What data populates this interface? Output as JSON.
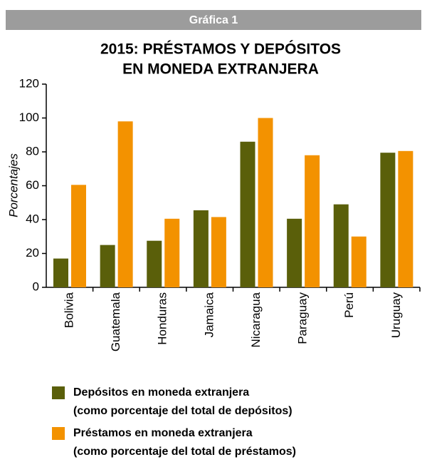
{
  "header": "Gráfica 1",
  "chart_data": {
    "type": "bar",
    "title": [
      "2015: PRÉSTAMOS Y DEPÓSITOS",
      "EN MONEDA EXTRANJERA"
    ],
    "y_label": "Porcentajes",
    "categories": [
      "Bolivia",
      "Guatemala",
      "Honduras",
      "Jamaica",
      "Nicaragua",
      "Paraguay",
      "Perú",
      "Uruguay"
    ],
    "series": [
      {
        "name": "Depósitos en moneda extranjera",
        "description": "(como porcentaje del total de depósitos)",
        "color": "#5a5f0a",
        "values": [
          17,
          25,
          27.5,
          45.5,
          86,
          40.5,
          49,
          79.5
        ]
      },
      {
        "name": "Préstamos en moneda extranjera",
        "description": "(como porcentaje del total de préstamos)",
        "color": "#f39200",
        "values": [
          60.5,
          98,
          40.5,
          41.5,
          100,
          78,
          30,
          80.5
        ]
      }
    ],
    "ylim": [
      0,
      120
    ],
    "yticks": [
      0,
      20,
      40,
      60,
      80,
      100,
      120
    ],
    "grid": false
  }
}
